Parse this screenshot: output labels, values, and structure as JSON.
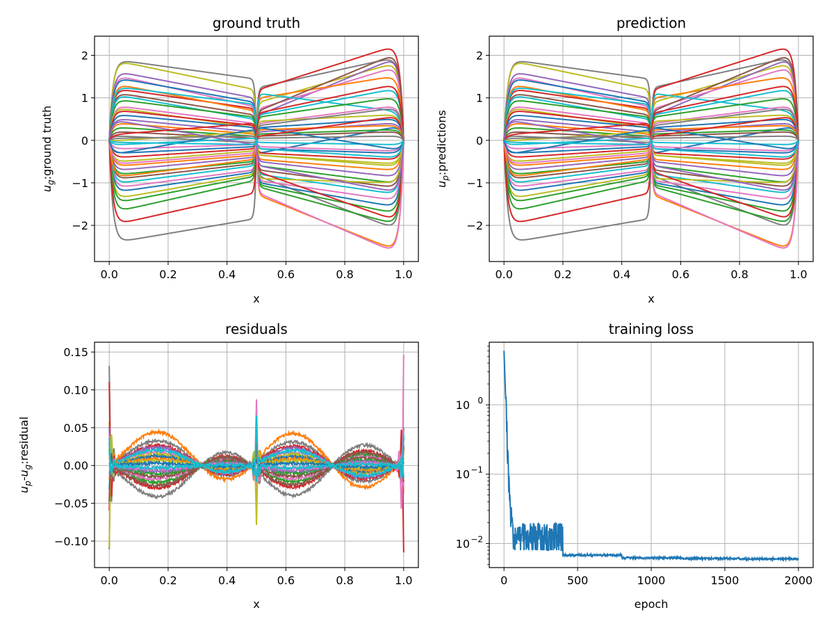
{
  "chart_data": [
    {
      "id": "ground_truth",
      "type": "line",
      "title": "ground truth",
      "xlabel": "x",
      "ylabel_main": "u",
      "ylabel_sub": "g",
      "ylabel_rest": ":ground truth",
      "xlim": [
        -0.05,
        1.05
      ],
      "ylim": [
        -2.85,
        2.45
      ],
      "xticks": [
        0.0,
        0.2,
        0.4,
        0.6,
        0.8,
        1.0
      ],
      "xtick_labels": [
        "0.0",
        "0.2",
        "0.4",
        "0.6",
        "0.8",
        "1.0"
      ],
      "yticks": [
        -2,
        -1,
        0,
        1,
        2
      ],
      "ytick_labels": [
        "−2",
        "−1",
        "0",
        "1",
        "2"
      ],
      "grid": true,
      "series": [
        {
          "a": 1.88,
          "b": 1.45,
          "c": 1.25,
          "d": 1.93,
          "color": "#7f7f7f"
        },
        {
          "a": -2.38,
          "b": -1.85,
          "c": -0.85,
          "d": -2.05,
          "color": "#7f7f7f"
        },
        {
          "a": 1.2,
          "b": 0.75,
          "c": 1.2,
          "d": 2.2,
          "color": "#d62728"
        },
        {
          "a": 1.85,
          "b": 1.2,
          "c": 0.9,
          "d": 1.8,
          "color": "#bcbd22"
        },
        {
          "a": 1.6,
          "b": 1.0,
          "c": 0.6,
          "d": 1.9,
          "color": "#9467bd"
        },
        {
          "a": 1.5,
          "b": 0.8,
          "c": 0.75,
          "d": 1.7,
          "color": "#e377c2"
        },
        {
          "a": 1.45,
          "b": 0.9,
          "c": -0.3,
          "d": 0.3,
          "color": "#1f77b4"
        },
        {
          "a": 1.3,
          "b": 0.7,
          "c": 1.0,
          "d": 1.5,
          "color": "#ff7f0e"
        },
        {
          "a": 1.25,
          "b": 0.85,
          "c": 0.6,
          "d": 1.2,
          "color": "#17becf"
        },
        {
          "a": 1.1,
          "b": 0.6,
          "c": 0.7,
          "d": 2.0,
          "color": "#8c564b"
        },
        {
          "a": 1.05,
          "b": 0.5,
          "c": 1.1,
          "d": 0.7,
          "color": "#17becf"
        },
        {
          "a": 0.95,
          "b": 0.55,
          "c": 0.55,
          "d": 1.0,
          "color": "#2ca02c"
        },
        {
          "a": 0.8,
          "b": 0.4,
          "c": 0.4,
          "d": 0.8,
          "color": "#e377c2"
        },
        {
          "a": 0.75,
          "b": 0.3,
          "c": 0.45,
          "d": 0.6,
          "color": "#bcbd22"
        },
        {
          "a": 0.7,
          "b": 0.35,
          "c": 0.65,
          "d": 1.3,
          "color": "#d62728"
        },
        {
          "a": 0.6,
          "b": 0.3,
          "c": 0.3,
          "d": 0.5,
          "color": "#1f77b4"
        },
        {
          "a": 0.5,
          "b": 0.2,
          "c": 0.2,
          "d": 0.4,
          "color": "#9467bd"
        },
        {
          "a": 0.4,
          "b": 0.15,
          "c": 0.25,
          "d": 0.35,
          "color": "#ff7f0e"
        },
        {
          "a": 0.3,
          "b": 0.1,
          "c": 0.15,
          "d": 0.25,
          "color": "#2ca02c"
        },
        {
          "a": 0.2,
          "b": 0.05,
          "c": 0.1,
          "d": 0.2,
          "color": "#8c564b"
        },
        {
          "a": 0.1,
          "b": -0.05,
          "c": 0.05,
          "d": 0.1,
          "color": "#7f7f7f"
        },
        {
          "a": -0.1,
          "b": 0.05,
          "c": -0.05,
          "d": -0.1,
          "color": "#17becf"
        },
        {
          "a": -0.2,
          "b": -0.1,
          "c": -0.15,
          "d": -0.25,
          "color": "#e377c2"
        },
        {
          "a": -0.3,
          "b": -0.15,
          "c": -0.2,
          "d": -0.3,
          "color": "#1f77b4"
        },
        {
          "a": -0.4,
          "b": -0.2,
          "c": -0.3,
          "d": -0.45,
          "color": "#d62728"
        },
        {
          "a": -0.5,
          "b": -0.25,
          "c": -0.35,
          "d": -0.55,
          "color": "#bcbd22"
        },
        {
          "a": -0.6,
          "b": -0.35,
          "c": -0.45,
          "d": -0.7,
          "color": "#ff7f0e"
        },
        {
          "a": -0.7,
          "b": -0.4,
          "c": -0.5,
          "d": -0.85,
          "color": "#9467bd"
        },
        {
          "a": -0.8,
          "b": -0.5,
          "c": -0.6,
          "d": -1.0,
          "color": "#2ca02c"
        },
        {
          "a": -0.9,
          "b": -0.55,
          "c": -0.7,
          "d": -1.1,
          "color": "#8c564b"
        },
        {
          "a": -1.0,
          "b": -0.6,
          "c": -0.8,
          "d": -1.25,
          "color": "#17becf"
        },
        {
          "a": -1.1,
          "b": -0.7,
          "c": -0.95,
          "d": -1.4,
          "color": "#e377c2"
        },
        {
          "a": -1.2,
          "b": -0.75,
          "c": -1.0,
          "d": -1.55,
          "color": "#1f77b4"
        },
        {
          "a": -1.35,
          "b": -0.8,
          "c": -0.9,
          "d": -1.0,
          "color": "#bcbd22"
        },
        {
          "a": -1.45,
          "b": -0.85,
          "c": -1.05,
          "d": -1.7,
          "color": "#2ca02c"
        },
        {
          "a": -1.65,
          "b": -0.95,
          "c": -1.1,
          "d": -1.95,
          "color": "#2ca02c"
        },
        {
          "a": -1.95,
          "b": -1.25,
          "c": -0.75,
          "d": -1.85,
          "color": "#d62728"
        },
        {
          "a": -0.85,
          "b": -0.45,
          "c": -1.3,
          "d": -2.55,
          "color": "#ff7f0e"
        },
        {
          "a": -0.55,
          "b": -0.3,
          "c": -1.25,
          "d": -2.6,
          "color": "#e377c2"
        },
        {
          "a": 0.0,
          "b": 0.2,
          "c": -0.35,
          "d": -0.6,
          "color": "#bcbd22"
        },
        {
          "a": -0.3,
          "b": 0.25,
          "c": 0.3,
          "d": -0.2,
          "color": "#1f77b4"
        },
        {
          "a": 0.45,
          "b": -0.1,
          "c": -0.6,
          "d": -1.2,
          "color": "#9467bd"
        },
        {
          "a": 0.15,
          "b": 0.4,
          "c": 0.1,
          "d": 0.55,
          "color": "#d62728"
        },
        {
          "a": 0.05,
          "b": 0.1,
          "c": 0.35,
          "d": 0.75,
          "color": "#7f7f7f"
        },
        {
          "a": -0.05,
          "b": -0.1,
          "c": -0.2,
          "d": -0.4,
          "color": "#17becf"
        }
      ]
    },
    {
      "id": "prediction",
      "type": "line",
      "title": "prediction",
      "xlabel": "x",
      "ylabel_main": "u",
      "ylabel_sub": "p",
      "ylabel_rest": ":predictions",
      "xlim": [
        -0.05,
        1.05
      ],
      "ylim": [
        -2.85,
        2.45
      ],
      "xticks": [
        0.0,
        0.2,
        0.4,
        0.6,
        0.8,
        1.0
      ],
      "xtick_labels": [
        "0.0",
        "0.2",
        "0.4",
        "0.6",
        "0.8",
        "1.0"
      ],
      "yticks": [
        -2,
        -1,
        0,
        1,
        2
      ],
      "ytick_labels": [
        "−2",
        "−1",
        "0",
        "1",
        "2"
      ],
      "grid": true,
      "series_same_as": "ground_truth"
    },
    {
      "id": "residuals",
      "type": "line",
      "title": "residuals",
      "xlabel": "x",
      "ylabel_main": "u",
      "ylabel_sub": "p",
      "ylabel_mid": "-u",
      "ylabel_sub2": "g",
      "ylabel_rest": ":residual",
      "xlim": [
        -0.05,
        1.05
      ],
      "ylim": [
        -0.135,
        0.163
      ],
      "xticks": [
        0.0,
        0.2,
        0.4,
        0.6,
        0.8,
        1.0
      ],
      "xtick_labels": [
        "0.0",
        "0.2",
        "0.4",
        "0.6",
        "0.8",
        "1.0"
      ],
      "yticks": [
        -0.1,
        -0.05,
        0.0,
        0.05,
        0.1,
        0.15
      ],
      "ytick_labels": [
        "−0.10",
        "−0.05",
        "0.00",
        "0.05",
        "0.10",
        "0.15"
      ],
      "grid": true,
      "series": [
        {
          "amp": 0.022,
          "s0": 0.133,
          "s1": 0.055,
          "s2": 0.045,
          "color": "#7f7f7f"
        },
        {
          "amp": -0.028,
          "s0": -0.11,
          "s1": 0.075,
          "s2": 0.045,
          "color": "#7f7f7f"
        },
        {
          "amp": 0.03,
          "s0": 0.06,
          "s1": -0.05,
          "s2": -0.045,
          "color": "#ff7f0e"
        },
        {
          "amp": -0.02,
          "s0": 0.11,
          "s1": 0.04,
          "s2": 0.03,
          "color": "#d62728"
        },
        {
          "amp": 0.018,
          "s0": -0.06,
          "s1": 0.05,
          "s2": -0.12,
          "color": "#d62728"
        },
        {
          "amp": 0.016,
          "s0": 0.05,
          "s1": -0.03,
          "s2": 0.035,
          "color": "#9467bd"
        },
        {
          "amp": -0.015,
          "s0": -0.05,
          "s1": 0.03,
          "s2": 0.04,
          "color": "#2ca02c"
        },
        {
          "amp": 0.012,
          "s0": 0.04,
          "s1": -0.04,
          "s2": -0.03,
          "color": "#e377c2"
        },
        {
          "amp": -0.012,
          "s0": -0.04,
          "s1": 0.09,
          "s2": 0.15,
          "color": "#e377c2"
        },
        {
          "amp": 0.01,
          "s0": -0.11,
          "s1": -0.08,
          "s2": 0.02,
          "color": "#bcbd22"
        },
        {
          "amp": -0.01,
          "s0": 0.03,
          "s1": 0.02,
          "s2": -0.02,
          "color": "#8c564b"
        },
        {
          "amp": 0.008,
          "s0": -0.03,
          "s1": -0.02,
          "s2": 0.025,
          "color": "#1f77b4"
        },
        {
          "amp": -0.007,
          "s0": 0.02,
          "s1": 0.015,
          "s2": -0.015,
          "color": "#2ca02c"
        },
        {
          "amp": 0.006,
          "s0": -0.02,
          "s1": 0.02,
          "s2": 0.018,
          "color": "#ff7f0e"
        },
        {
          "amp": -0.005,
          "s0": 0.015,
          "s1": -0.015,
          "s2": -0.01,
          "color": "#9467bd"
        },
        {
          "amp": 0.004,
          "s0": 0.01,
          "s1": 0.01,
          "s2": 0.01,
          "color": "#bcbd22"
        },
        {
          "amp": -0.003,
          "s0": -0.01,
          "s1": -0.01,
          "s2": -0.012,
          "color": "#e377c2"
        },
        {
          "amp": 0.002,
          "s0": 0.005,
          "s1": 0.005,
          "s2": 0.005,
          "color": "#1f77b4"
        },
        {
          "amp": -0.018,
          "s0": -0.045,
          "s1": 0.035,
          "s2": 0.03,
          "color": "#8c564b"
        },
        {
          "amp": 0.014,
          "s0": 0.035,
          "s1": -0.025,
          "s2": -0.02,
          "color": "#17becf"
        },
        {
          "amp": -0.002,
          "s0": 0.02,
          "s1": 0.065,
          "s2": 0.04,
          "color": "#17becf"
        }
      ]
    },
    {
      "id": "training_loss",
      "type": "line",
      "title": "training loss",
      "xlabel": "epoch",
      "xlim": [
        -100,
        2100
      ],
      "ylog": true,
      "ylim": [
        0.0045,
        8.0
      ],
      "xticks": [
        0,
        500,
        1000,
        1500,
        2000
      ],
      "xtick_labels": [
        "0",
        "500",
        "1000",
        "1500",
        "2000"
      ],
      "yticks": [
        0.01,
        0.1,
        1.0
      ],
      "ytick_labels": [
        "10",
        "10",
        "10"
      ],
      "ytick_exponents": [
        "−2",
        "−1",
        "0"
      ],
      "grid": true,
      "series": [
        {
          "color": "#1f77b4",
          "start": 6.0,
          "plateaus": [
            {
              "from": 400,
              "to": 800,
              "value": 0.0068
            },
            {
              "from": 800,
              "to": 1200,
              "value": 0.0062
            },
            {
              "from": 1200,
              "to": 1600,
              "value": 0.0061
            },
            {
              "from": 1600,
              "to": 2000,
              "value": 0.006
            }
          ]
        }
      ]
    }
  ]
}
